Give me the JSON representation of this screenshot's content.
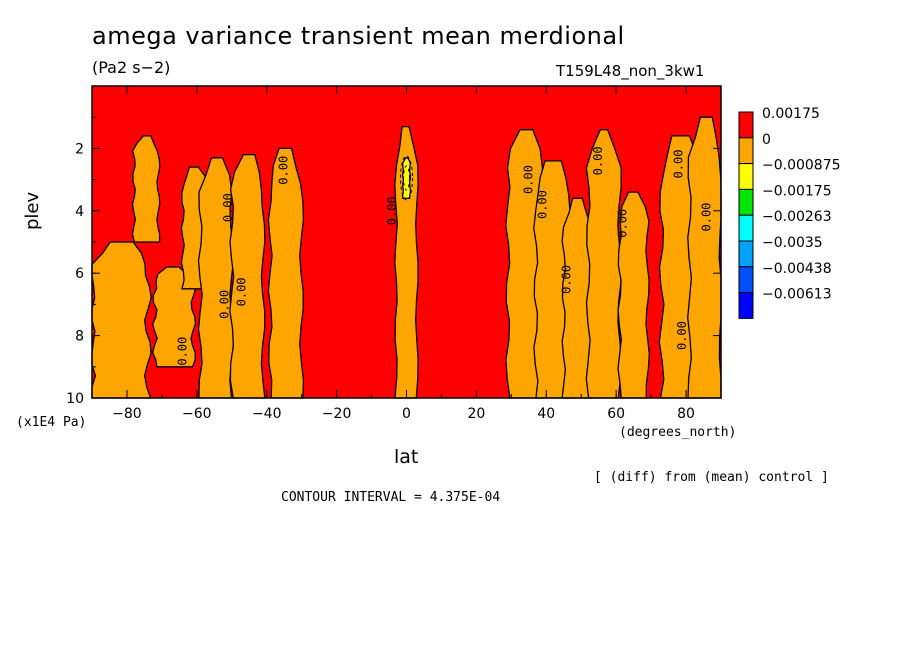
{
  "title": "amega variance transient mean merdional",
  "units": "(Pa2 s−2)",
  "run_id": "T159L48_non_3kw1",
  "note": "[ (diff) from (mean) control ]",
  "contour_interval": "CONTOUR INTERVAL = 4.375E-04",
  "chart_data": {
    "type": "heatmap",
    "title": "amega variance transient mean merdional",
    "xlabel": "lat",
    "ylabel": "plev",
    "x_unit": "(degrees_north)",
    "y_unit": "(x1E4 Pa)",
    "xlim": [
      -90,
      90
    ],
    "ylim": [
      10,
      0
    ],
    "x_ticks": [
      -80,
      -60,
      -40,
      -20,
      0,
      20,
      40,
      60,
      80
    ],
    "y_ticks": [
      2,
      4,
      6,
      8,
      10
    ],
    "legend": {
      "position": "right",
      "levels": [
        {
          "label": "0.00175",
          "color": "#ff0000"
        },
        {
          "label": "0",
          "color": "#ffa500"
        },
        {
          "label": "−0.000875",
          "color": "#ffff00"
        },
        {
          "label": "−0.00175",
          "color": "#00e600"
        },
        {
          "label": "−0.00263",
          "color": "#00ffff"
        },
        {
          "label": "−0.0035",
          "color": "#00a0ff"
        },
        {
          "label": "−0.00438",
          "color": "#0050ff"
        },
        {
          "label": "−0.00613",
          "color": "#0000ff"
        }
      ]
    },
    "negative_regions": [
      {
        "lat": [
          -90,
          -74
        ],
        "plev": [
          5.0,
          10
        ],
        "level": 1
      },
      {
        "lat": [
          -78,
          -71
        ],
        "plev": [
          1.6,
          5.0
        ],
        "level": 1
      },
      {
        "lat": [
          -72,
          -61
        ],
        "plev": [
          5.8,
          9.0
        ],
        "level": 1
      },
      {
        "lat": [
          -64,
          -57
        ],
        "plev": [
          2.6,
          6.5
        ],
        "level": 1
      },
      {
        "lat": [
          -59,
          -50
        ],
        "plev": [
          2.3,
          10
        ],
        "level": 1
      },
      {
        "lat": [
          -50,
          -41
        ],
        "plev": [
          2.2,
          10
        ],
        "level": 1
      },
      {
        "lat": [
          -39,
          -30
        ],
        "plev": [
          2.0,
          10
        ],
        "level": 1
      },
      {
        "lat": [
          -3,
          3
        ],
        "plev": [
          1.3,
          10
        ],
        "level": 1
      },
      {
        "lat": [
          -1,
          1
        ],
        "plev": [
          2.3,
          3.6
        ],
        "level": 2
      },
      {
        "lat": [
          29,
          39
        ],
        "plev": [
          1.4,
          10
        ],
        "level": 1
      },
      {
        "lat": [
          37,
          47
        ],
        "plev": [
          2.4,
          10
        ],
        "level": 1
      },
      {
        "lat": [
          45,
          53
        ],
        "plev": [
          3.6,
          10
        ],
        "level": 1
      },
      {
        "lat": [
          52,
          61
        ],
        "plev": [
          1.4,
          10
        ],
        "level": 1
      },
      {
        "lat": [
          61,
          69
        ],
        "plev": [
          3.4,
          10
        ],
        "level": 1
      },
      {
        "lat": [
          73,
          84
        ],
        "plev": [
          1.6,
          10
        ],
        "level": 1
      },
      {
        "lat": [
          81,
          90
        ],
        "plev": [
          1.0,
          10
        ],
        "level": 1
      }
    ],
    "contour_labels": [
      {
        "text": "0.00",
        "lat": -63,
        "plev": 8.5
      },
      {
        "text": "0.00",
        "lat": -51,
        "plev": 7.0
      },
      {
        "text": "0.00",
        "lat": -50,
        "plev": 3.9
      },
      {
        "text": "0.00",
        "lat": -46,
        "plev": 6.6
      },
      {
        "text": "0.00",
        "lat": -34,
        "plev": 2.7
      },
      {
        "text": "0.00",
        "lat": -3,
        "plev": 4.0
      },
      {
        "text": "0.00",
        "lat": 36,
        "plev": 3.0
      },
      {
        "text": "0.00",
        "lat": 40,
        "plev": 3.8
      },
      {
        "text": "0.00",
        "lat": 47,
        "plev": 6.2
      },
      {
        "text": "0.00",
        "lat": 56,
        "plev": 2.4
      },
      {
        "text": "0.00",
        "lat": 63,
        "plev": 4.4
      },
      {
        "text": "0.00",
        "lat": 79,
        "plev": 2.5
      },
      {
        "text": "0.00",
        "lat": 80,
        "plev": 8.0
      },
      {
        "text": "0.00",
        "lat": 87,
        "plev": 4.2
      }
    ]
  }
}
